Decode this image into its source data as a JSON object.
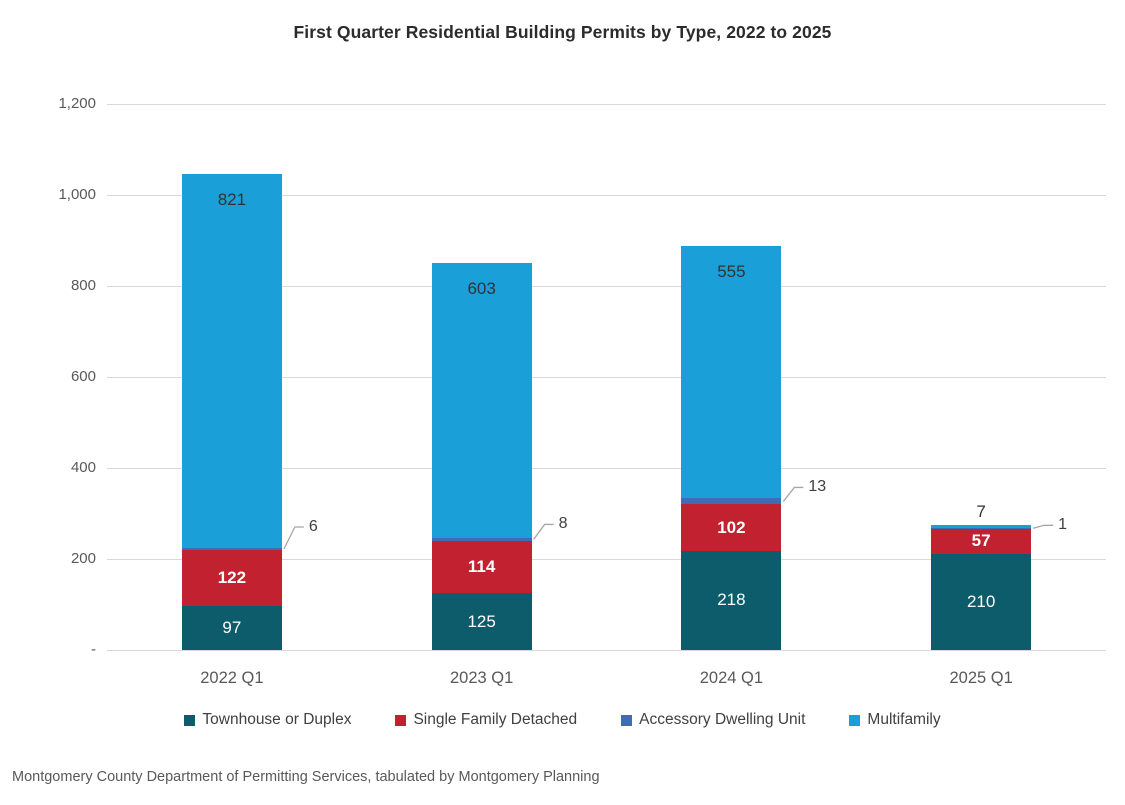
{
  "title": "First Quarter Residential Building Permits by Type, 2022 to 2025",
  "source_note": "Montgomery County Department of Permitting Services, tabulated by Montgomery Planning",
  "colors": {
    "background": "#ffffff",
    "title_text": "#2b2b2b",
    "axis_text": "#595959",
    "gridline": "#d9d9d9",
    "inside_label_light": "#ffffff",
    "inside_label_dark": "#323232",
    "callout_line": "#a6a6a6",
    "callout_text": "#404040",
    "legend_text": "#404040"
  },
  "chart_data": {
    "type": "bar",
    "stacked": true,
    "title": "First Quarter Residential Building Permits by Type, 2022 to 2025",
    "categories": [
      "2022 Q1",
      "2023 Q1",
      "2024 Q1",
      "2025 Q1"
    ],
    "series": [
      {
        "name": "Townhouse or Duplex",
        "color": "#0d5c6c",
        "values": [
          97,
          125,
          218,
          210
        ],
        "label_style": "white"
      },
      {
        "name": "Single Family Detached",
        "color": "#c2212f",
        "values": [
          122,
          114,
          102,
          57
        ],
        "label_style": "white-bold"
      },
      {
        "name": "Accessory Dwelling Unit",
        "color": "#3c6db5",
        "values": [
          6,
          8,
          13,
          1
        ],
        "label_style": "callout"
      },
      {
        "name": "Multifamily",
        "color": "#1b9fd8",
        "values": [
          821,
          603,
          555,
          7
        ],
        "label_style": "dark-top"
      }
    ],
    "totals": [
      1046,
      850,
      888,
      275
    ],
    "xlabel": "",
    "ylabel": "",
    "ylim": [
      0,
      1200
    ],
    "ytick_interval": 200,
    "ytick_labels": [
      "-",
      "200",
      "400",
      "600",
      "800",
      "1,000",
      "1,200"
    ],
    "grid": "horizontal",
    "legend_position": "bottom"
  }
}
